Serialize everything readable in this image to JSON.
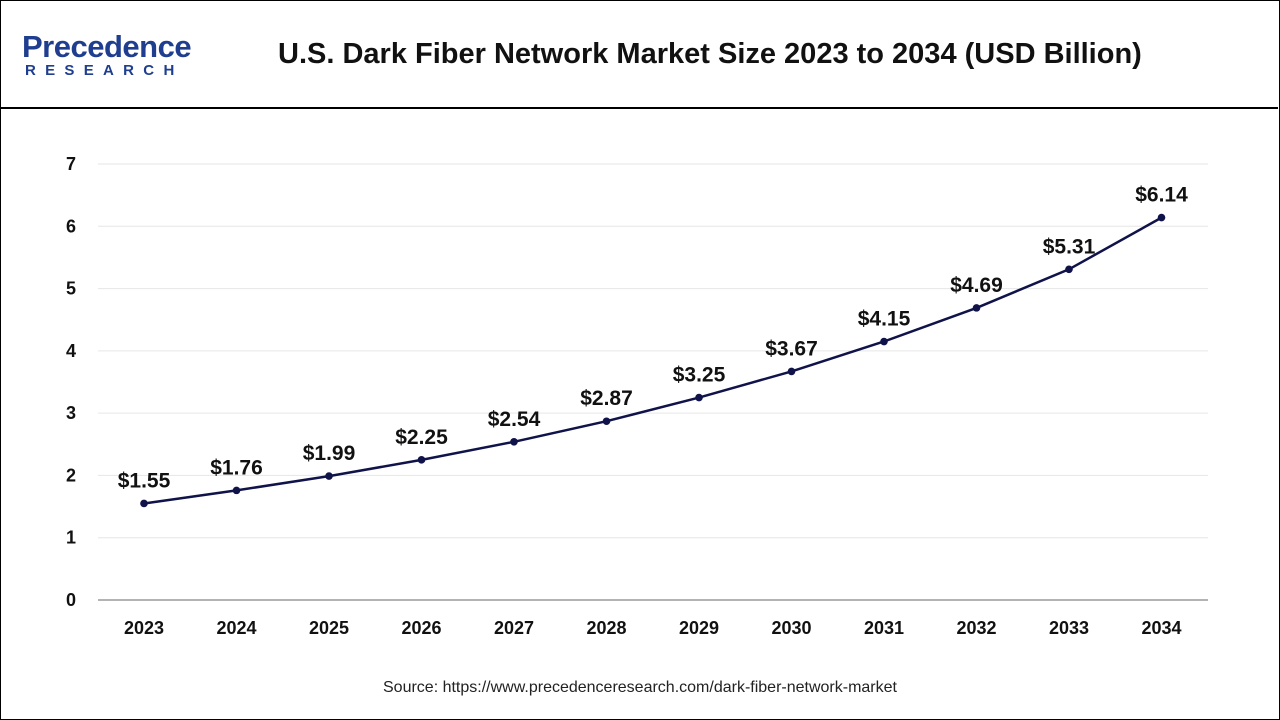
{
  "header": {
    "logo_top": "Precedence",
    "logo_bottom": "RESEARCH",
    "title": "U.S. Dark Fiber Network Market Size 2023 to 2034 (USD Billion)"
  },
  "source": "Source: https://www.precedenceresearch.com/dark-fiber-network-market",
  "colors": {
    "line": "#10134a",
    "brand": "#1f3e8f",
    "grid": "#e6e6e6"
  },
  "chart_data": {
    "type": "line",
    "title": "U.S. Dark Fiber Network Market Size 2023 to 2034 (USD Billion)",
    "xlabel": "",
    "ylabel": "",
    "categories": [
      "2023",
      "2024",
      "2025",
      "2026",
      "2027",
      "2028",
      "2029",
      "2030",
      "2031",
      "2032",
      "2033",
      "2034"
    ],
    "values": [
      1.55,
      1.76,
      1.99,
      2.25,
      2.54,
      2.87,
      3.25,
      3.67,
      4.15,
      4.69,
      5.31,
      6.14
    ],
    "data_labels": [
      "$1.55",
      "$1.76",
      "$1.99",
      "$2.25",
      "$2.54",
      "$2.87",
      "$3.25",
      "$3.67",
      "$4.15",
      "$4.69",
      "$5.31",
      "$6.14"
    ],
    "ylim": [
      0,
      7
    ],
    "yticks": [
      "0",
      "1",
      "2",
      "3",
      "4",
      "5",
      "6",
      "7"
    ],
    "grid": true,
    "legend": "none"
  }
}
